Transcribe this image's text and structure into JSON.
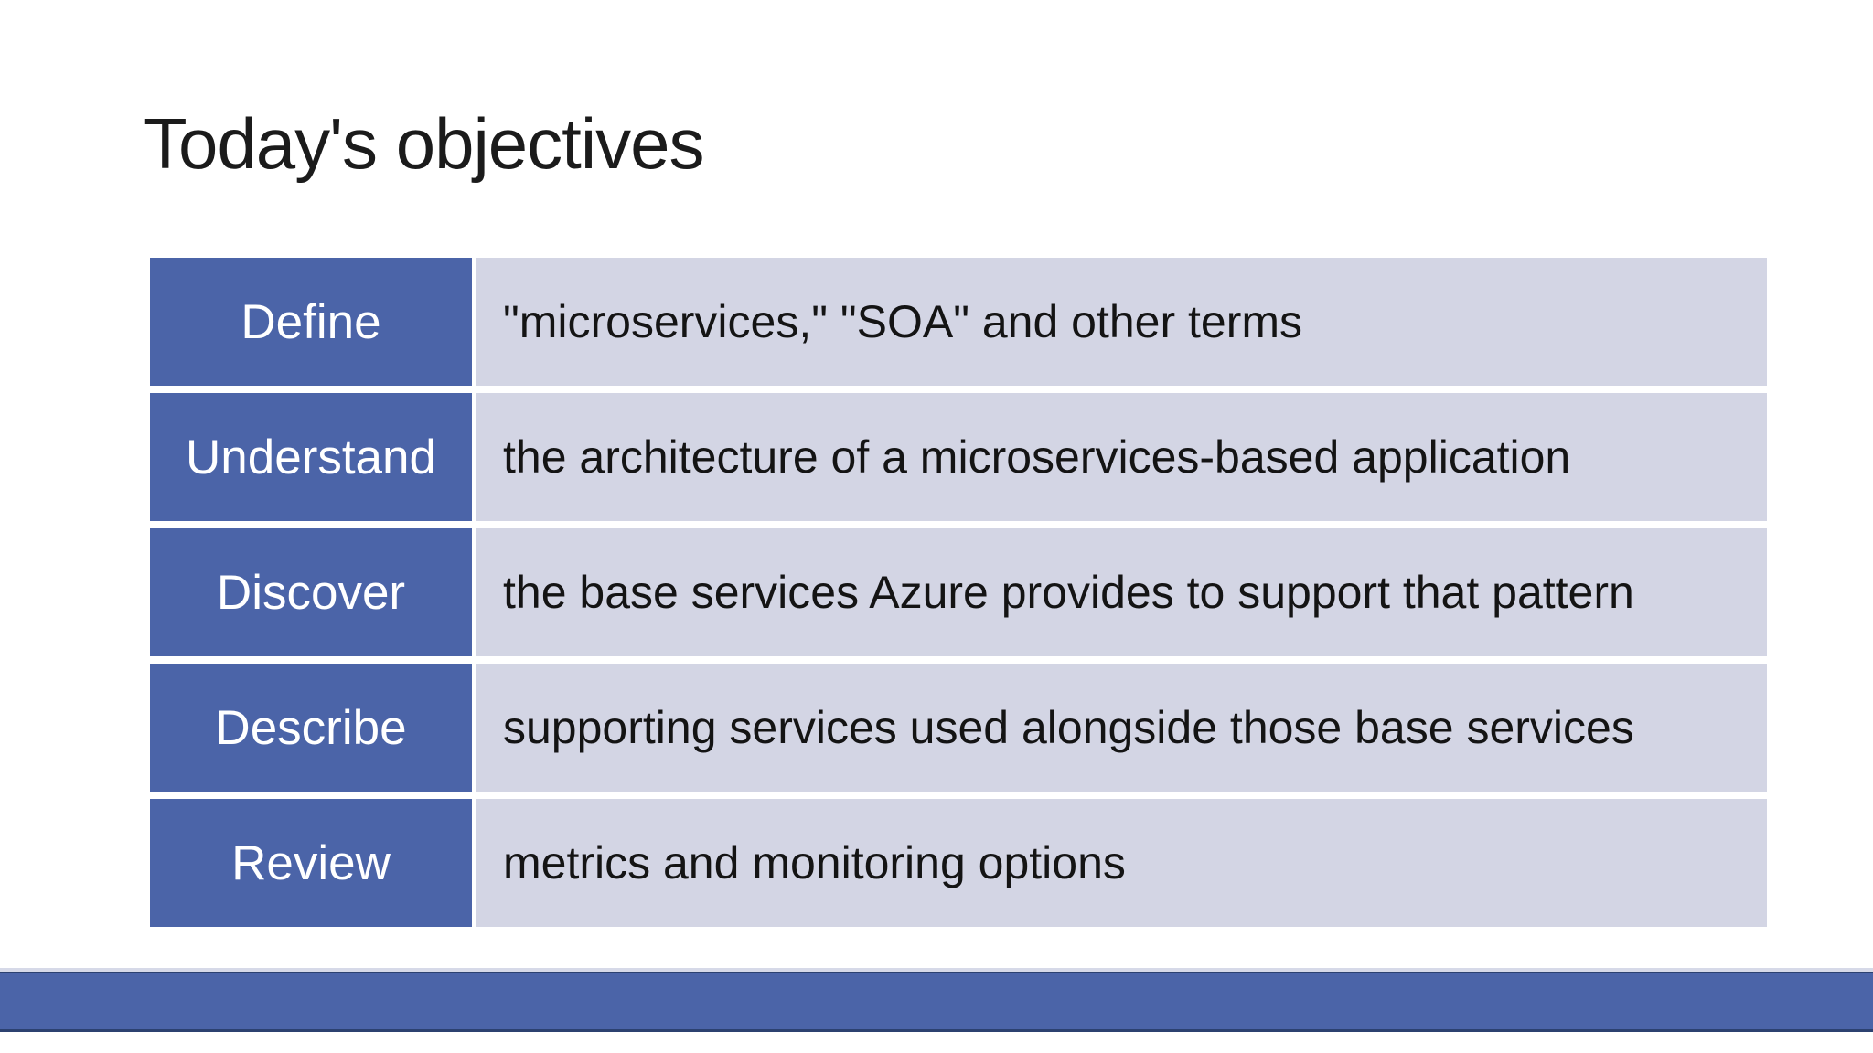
{
  "slide": {
    "title": "Today's objectives",
    "table": {
      "rows": [
        {
          "term": "Define",
          "description": "\"microservices,\" \"SOA\" and other terms"
        },
        {
          "term": "Understand",
          "description": "the architecture of a microservices-based application"
        },
        {
          "term": "Discover",
          "description": "the base services Azure provides to support that pattern"
        },
        {
          "term": "Describe",
          "description": "supporting services used alongside those base services"
        },
        {
          "term": "Review",
          "description": "metrics and monitoring options"
        }
      ]
    },
    "colors": {
      "term_cell_bg": "#4B64A8",
      "desc_cell_bg": "#D3D5E4",
      "term_text": "#FFFFFF",
      "desc_text": "#141414",
      "footer_bar": "#4B64A8",
      "footer_bar_border": "#2C4170",
      "background": "#FFFFFF"
    }
  }
}
